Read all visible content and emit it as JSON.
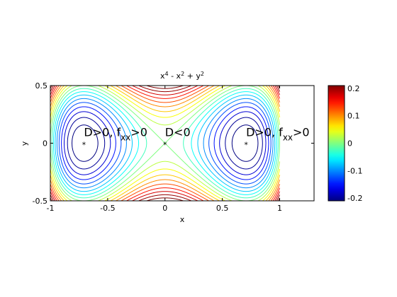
{
  "chart_data": {
    "type": "contour",
    "title": [
      {
        "text": "x"
      },
      {
        "sup": "4"
      },
      {
        "text": " - x"
      },
      {
        "sup": "2"
      },
      {
        "text": " + y"
      },
      {
        "sup": "2"
      }
    ],
    "x_label": "x",
    "y_label": "y",
    "xlim": [
      -1,
      1.3
    ],
    "ylim": [
      -0.5,
      0.5
    ],
    "xticks": [
      -1,
      -0.5,
      0,
      0.5,
      1
    ],
    "yticks": [
      -0.5,
      0,
      0.5
    ],
    "domain_x": [
      -1,
      1
    ],
    "levels": [
      -0.225,
      -0.2,
      -0.175,
      -0.15,
      -0.125,
      -0.1,
      -0.075,
      -0.05,
      -0.025,
      0,
      0.025,
      0.05,
      0.075,
      0.1,
      0.125,
      0.15,
      0.175,
      0.2,
      0.225
    ],
    "colormap": "jet",
    "colorbar": {
      "ylim": [
        -0.21,
        0.21
      ],
      "yticks": [
        -0.2,
        -0.1,
        0,
        0.1,
        0.2
      ]
    },
    "points": [
      {
        "x": -0.7071,
        "y": 0
      },
      {
        "x": 0,
        "y": 0
      },
      {
        "x": 0.7071,
        "y": 0
      }
    ],
    "annotations": [
      {
        "x": -0.7071,
        "y": 0.05,
        "text": "D>0, f",
        "sub": "xx",
        "after": ">0"
      },
      {
        "x": 0,
        "y": 0.05,
        "text": "D<0"
      },
      {
        "x": 0.7071,
        "y": 0.05,
        "text": "D>0, f",
        "sub": "xx",
        "after": ">0"
      }
    ]
  }
}
